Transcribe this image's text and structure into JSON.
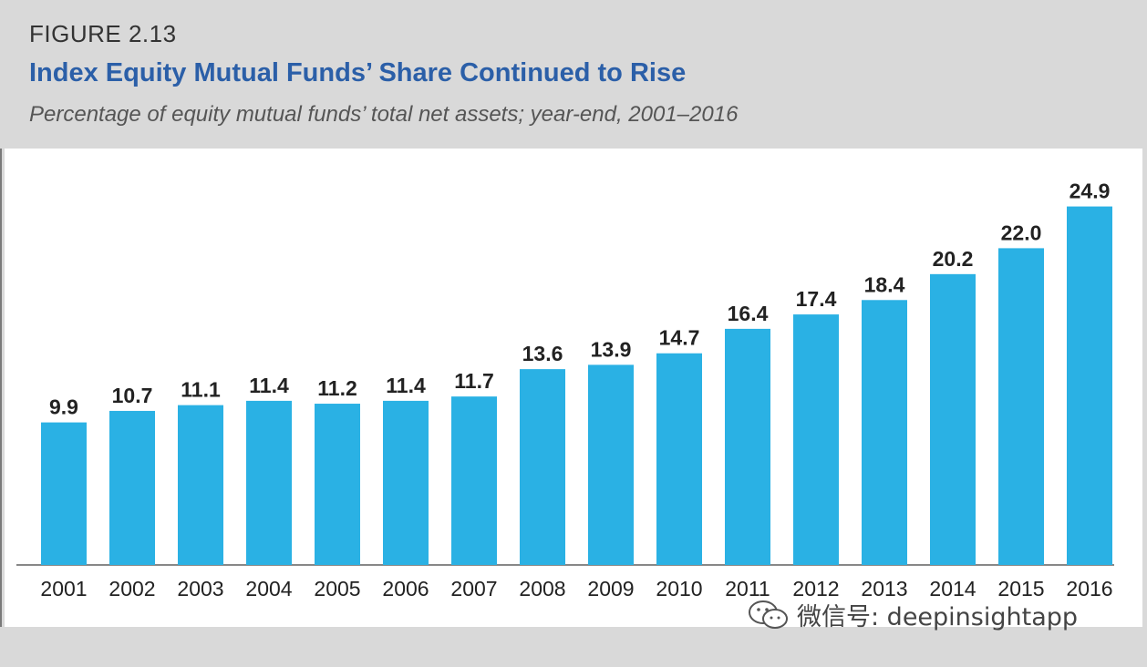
{
  "figure_label": "FIGURE 2.13",
  "chart_data": {
    "type": "bar",
    "title": "Index Equity Mutual Funds’ Share Continued to Rise",
    "subtitle": "Percentage of equity mutual funds’ total net assets; year-end, 2001–2016",
    "categories": [
      "2001",
      "2002",
      "2003",
      "2004",
      "2005",
      "2006",
      "2007",
      "2008",
      "2009",
      "2010",
      "2011",
      "2012",
      "2013",
      "2014",
      "2015",
      "2016"
    ],
    "values": [
      9.9,
      10.7,
      11.1,
      11.4,
      11.2,
      11.4,
      11.7,
      13.6,
      13.9,
      14.7,
      16.4,
      17.4,
      18.4,
      20.2,
      22.0,
      24.9
    ],
    "value_labels": [
      "9.9",
      "10.7",
      "11.1",
      "11.4",
      "11.2",
      "11.4",
      "11.7",
      "13.6",
      "13.9",
      "14.7",
      "16.4",
      "17.4",
      "18.4",
      "20.2",
      "22.0",
      "24.9"
    ],
    "xlabel": "",
    "ylabel": "",
    "ylim": [
      0,
      25
    ],
    "grid": false,
    "bar_color": "#2ab1e4"
  },
  "watermark": {
    "text": "微信号: deepinsightapp",
    "icon": "wechat-icon"
  }
}
